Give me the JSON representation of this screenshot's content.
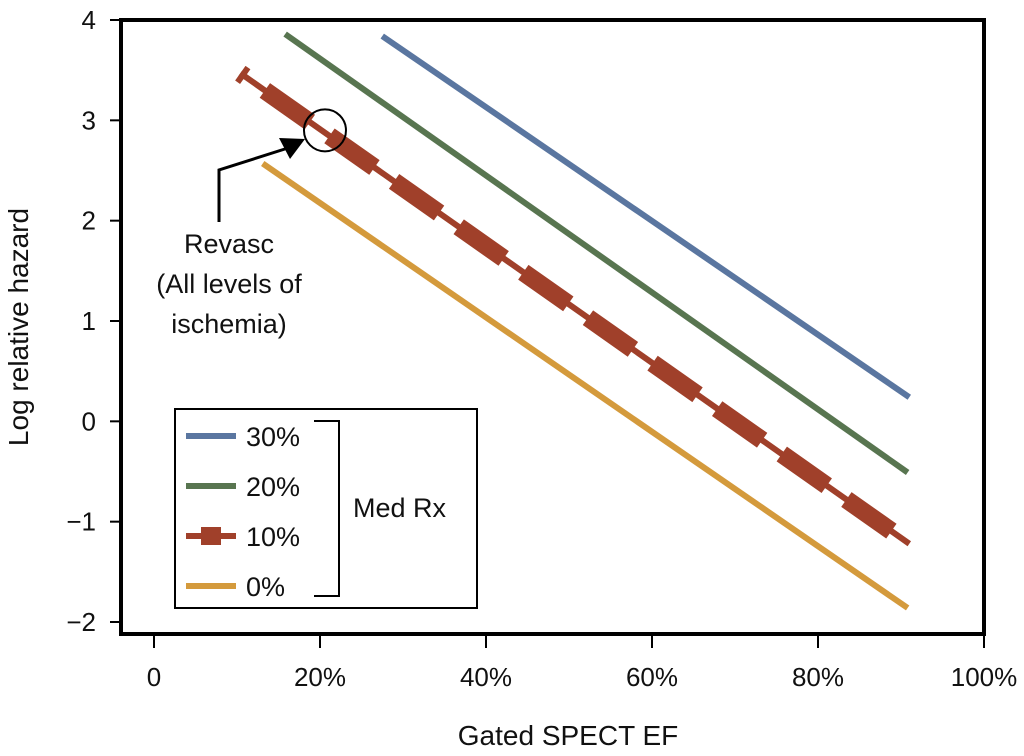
{
  "chart_data": {
    "type": "line",
    "title": "",
    "xlabel": "Gated SPECT EF",
    "ylabel": "Log relative hazard",
    "xlim": [
      0,
      100
    ],
    "ylim": [
      -2,
      4
    ],
    "x_ticks": [
      0,
      20,
      40,
      60,
      80,
      100
    ],
    "x_tick_labels": [
      "0",
      "20%",
      "40%",
      "60%",
      "80%",
      "100%"
    ],
    "y_ticks": [
      4,
      3,
      2,
      1,
      0,
      -1,
      -2
    ],
    "y_tick_labels": [
      "4",
      "3",
      "2",
      "1",
      "0",
      "−1",
      "−2"
    ],
    "grid": false,
    "series": [
      {
        "name": "30%",
        "color": "#5a76a0",
        "style": "solid",
        "x": [
          27.5,
          91
        ],
        "y": [
          3.84,
          0.24
        ]
      },
      {
        "name": "20%",
        "color": "#587550",
        "style": "solid",
        "x": [
          15.8,
          90.8
        ],
        "y": [
          3.86,
          -0.51
        ]
      },
      {
        "name": "10%",
        "color": "#a0402a",
        "style": "dashed-bar",
        "x": [
          10.4,
          91
        ],
        "y": [
          3.47,
          -1.22
        ]
      },
      {
        "name": "0%",
        "color": "#d49a3c",
        "style": "solid",
        "x": [
          13.1,
          90.8
        ],
        "y": [
          2.57,
          -1.86
        ]
      }
    ],
    "legend": {
      "placement": "bottom-left",
      "entries": [
        "30%",
        "20%",
        "10%",
        "0%"
      ],
      "group_label": "Med Rx"
    },
    "annotations": [
      {
        "text_lines": [
          "Revasc",
          "(All levels of",
          "ischemia)"
        ],
        "circle_point": {
          "x": 20.6,
          "y": 2.9
        }
      }
    ]
  }
}
